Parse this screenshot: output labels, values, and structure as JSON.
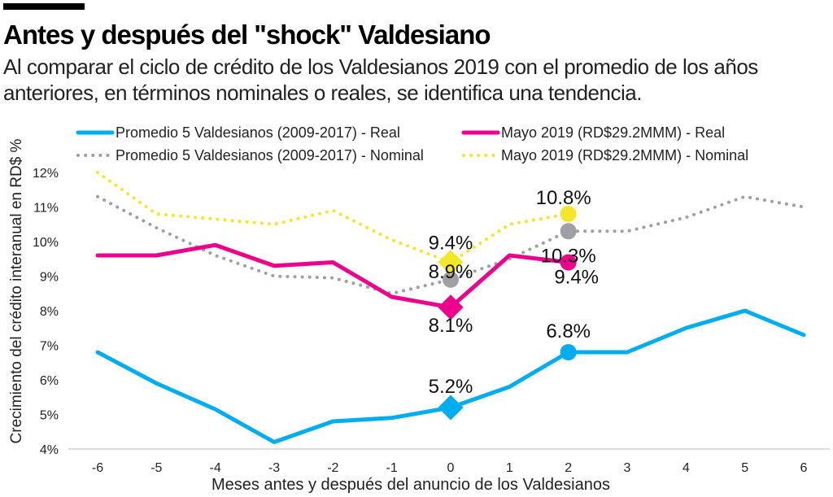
{
  "header": {
    "title": "Antes y después del \"shock\" Valdesiano",
    "subtitle": "Al comparar el ciclo de crédito de los Valdesianos 2019 con el promedio de los años anteriores, en términos nominales o reales, se identifica una tendencia."
  },
  "chart_data": {
    "type": "line",
    "xlabel": "Meses antes y después del anuncio de los Valdesianos",
    "ylabel": "Crecimiento del crédito interanual en RD$ %",
    "x": [
      -6,
      -5,
      -4,
      -3,
      -2,
      -1,
      0,
      1,
      2,
      3,
      4,
      5,
      6
    ],
    "xlim": [
      -6,
      6
    ],
    "ylim": [
      4,
      12
    ],
    "yticks": [
      "4%",
      "5%",
      "6%",
      "7%",
      "8%",
      "9%",
      "10%",
      "11%",
      "12%"
    ],
    "grid": false,
    "legend_position": "top",
    "series": [
      {
        "name": "Promedio 5 Valdesianos (2009-2017) - Real",
        "color": "#00aeef",
        "style": "solid",
        "values": [
          6.8,
          5.9,
          5.15,
          4.2,
          4.8,
          4.9,
          5.2,
          5.8,
          6.8,
          6.8,
          7.5,
          8.0,
          7.3
        ],
        "markers": [
          {
            "x": 0,
            "shape": "diamond",
            "label": "5.2%"
          },
          {
            "x": 2,
            "shape": "circle",
            "label": "6.8%"
          }
        ]
      },
      {
        "name": "Mayo 2019 (RD$29.2MMM) - Real",
        "color": "#ec008c",
        "style": "solid",
        "values": [
          9.6,
          9.6,
          9.9,
          9.3,
          9.4,
          8.4,
          8.1,
          9.6,
          9.4,
          null,
          null,
          null,
          null
        ],
        "markers": [
          {
            "x": 0,
            "shape": "diamond",
            "label": "8.1%"
          },
          {
            "x": 2,
            "shape": "circle",
            "label": "9.4%"
          }
        ]
      },
      {
        "name": "Promedio 5 Valdesianos (2009-2017) - Nominal",
        "color": "#a0a0a4",
        "style": "dotted",
        "values": [
          11.3,
          10.4,
          9.6,
          9.0,
          8.95,
          8.5,
          8.9,
          9.5,
          10.3,
          10.3,
          10.7,
          11.3,
          11.0
        ],
        "markers": [
          {
            "x": 0,
            "shape": "circle",
            "label": "8.9%"
          },
          {
            "x": 2,
            "shape": "circle",
            "label": "10.3%"
          }
        ]
      },
      {
        "name": "Mayo 2019 (RD$29.2MMM) - Nominal",
        "color": "#f2e829",
        "style": "dotted",
        "values": [
          12.0,
          10.8,
          10.65,
          10.5,
          10.9,
          10.05,
          9.4,
          10.5,
          10.8,
          null,
          null,
          null,
          null
        ],
        "markers": [
          {
            "x": 0,
            "shape": "diamond",
            "label": "9.4%"
          },
          {
            "x": 2,
            "shape": "circle",
            "label": "10.8%"
          }
        ]
      }
    ]
  }
}
